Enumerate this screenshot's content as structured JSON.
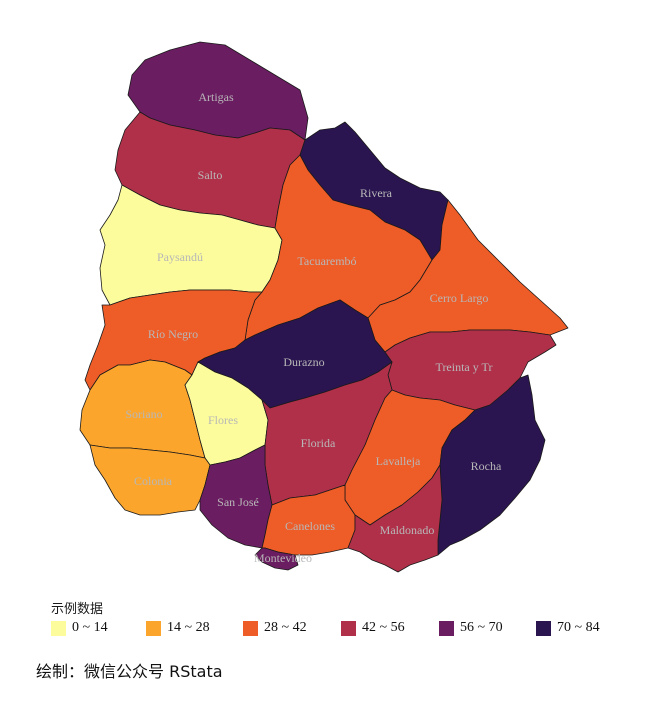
{
  "map": {
    "regions": [
      {
        "id": "artigas",
        "name": "Artigas",
        "bin": 4,
        "color": "#6b1d62"
      },
      {
        "id": "salto",
        "name": "Salto",
        "bin": 3,
        "color": "#b0304a"
      },
      {
        "id": "rivera",
        "name": "Rivera",
        "bin": 5,
        "color": "#2a1550"
      },
      {
        "id": "paysandu",
        "name": "Paysandú",
        "bin": 0,
        "color": "#fcfc9c"
      },
      {
        "id": "tacuarembo",
        "name": "Tacuarembó",
        "bin": 2,
        "color": "#ee5c27"
      },
      {
        "id": "cerro-largo",
        "name": "Cerro Largo",
        "bin": 2,
        "color": "#ee5c27"
      },
      {
        "id": "rio-negro",
        "name": "Río Negro",
        "bin": 2,
        "color": "#ee5c27"
      },
      {
        "id": "durazno",
        "name": "Durazno",
        "bin": 5,
        "color": "#2a1550"
      },
      {
        "id": "treinta-y-tres",
        "name": "Treinta y Tr",
        "bin": 3,
        "color": "#b0304a"
      },
      {
        "id": "soriano",
        "name": "Soriano",
        "bin": 1,
        "color": "#fba52d"
      },
      {
        "id": "flores",
        "name": "Flores",
        "bin": 0,
        "color": "#fcfc9c"
      },
      {
        "id": "florida",
        "name": "Florida",
        "bin": 3,
        "color": "#b0304a"
      },
      {
        "id": "lavalleja",
        "name": "Lavalleja",
        "bin": 2,
        "color": "#ee5c27"
      },
      {
        "id": "rocha",
        "name": "Rocha",
        "bin": 5,
        "color": "#2a1550"
      },
      {
        "id": "colonia",
        "name": "Colonia",
        "bin": 1,
        "color": "#fba52d"
      },
      {
        "id": "san-jose",
        "name": "San José",
        "bin": 4,
        "color": "#6b1d62"
      },
      {
        "id": "canelones",
        "name": "Canelones",
        "bin": 2,
        "color": "#ee5c27"
      },
      {
        "id": "maldonado",
        "name": "Maldonado",
        "bin": 3,
        "color": "#b0304a"
      },
      {
        "id": "montevideo",
        "name": "Montevideo",
        "bin": 4,
        "color": "#6b1d62"
      }
    ]
  },
  "legend": {
    "title": "示例数据",
    "items": [
      {
        "label": "0 ~ 14",
        "color": "#fcfc9c"
      },
      {
        "label": "14 ~ 28",
        "color": "#fba52d"
      },
      {
        "label": "28 ~ 42",
        "color": "#ee5c27"
      },
      {
        "label": "42 ~ 56",
        "color": "#b0304a"
      },
      {
        "label": "56 ~ 70",
        "color": "#6b1d62"
      },
      {
        "label": "70 ~ 84",
        "color": "#2a1550"
      }
    ]
  },
  "caption": "绘制：微信公众号 RStata"
}
